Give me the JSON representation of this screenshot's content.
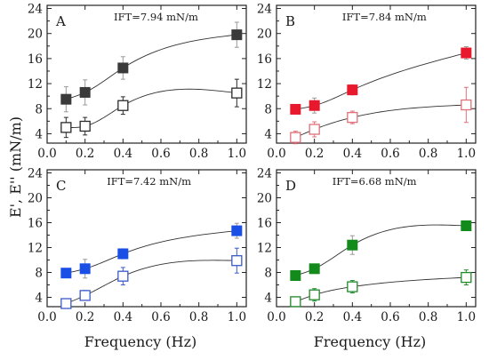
{
  "figure": {
    "ylabel": "E', E'' (mN/m)",
    "xlabel": "Frequency (Hz)"
  },
  "chart_data": [
    {
      "type": "scatter",
      "panel": "A",
      "annotation": "IFT=7.94 mN/m",
      "xlim": [
        0.0,
        1.05
      ],
      "ylim": [
        2.5,
        24.5
      ],
      "xticks": [
        "0.0",
        "0.2",
        "0.4",
        "0.6",
        "0.8",
        "1.0"
      ],
      "yticks": [
        "4",
        "8",
        "12",
        "16",
        "20",
        "24"
      ],
      "x": [
        0.1,
        0.2,
        0.4,
        1.0
      ],
      "series": [
        {
          "marker": "filled-square",
          "color": "#3a3a3a",
          "values": [
            9.5,
            10.6,
            14.5,
            19.8
          ],
          "errors": [
            2.0,
            2.0,
            1.8,
            2.0
          ]
        },
        {
          "marker": "open-square",
          "color": "#2a2a2a",
          "values": [
            5.0,
            5.2,
            8.5,
            10.5
          ],
          "errors": [
            1.6,
            1.4,
            1.4,
            2.2
          ]
        }
      ]
    },
    {
      "type": "scatter",
      "panel": "B",
      "annotation": "IFT=7.84 mN/m",
      "xlim": [
        0.0,
        1.05
      ],
      "ylim": [
        2.5,
        24.5
      ],
      "xticks": [
        "0.0",
        "0.2",
        "0.4",
        "0.6",
        "0.8",
        "1.0"
      ],
      "yticks": [
        "4",
        "8",
        "12",
        "16",
        "20",
        "24"
      ],
      "x": [
        0.1,
        0.2,
        0.4,
        1.0
      ],
      "series": [
        {
          "marker": "filled-square",
          "color": "#e8192c",
          "values": [
            7.9,
            8.5,
            11.0,
            16.9
          ],
          "errors": [
            0.6,
            1.2,
            0.8,
            1.0
          ]
        },
        {
          "marker": "open-square",
          "color": "#e0707a",
          "values": [
            3.4,
            4.7,
            6.6,
            8.6
          ],
          "errors": [
            1.0,
            1.2,
            1.0,
            2.8
          ]
        }
      ]
    },
    {
      "type": "scatter",
      "panel": "C",
      "annotation": "IFT=7.42 mN/m",
      "xlim": [
        0.0,
        1.05
      ],
      "ylim": [
        2.5,
        24.5
      ],
      "xticks": [
        "0.0",
        "0.2",
        "0.4",
        "0.6",
        "0.8",
        "1.0"
      ],
      "yticks": [
        "4",
        "8",
        "12",
        "16",
        "20",
        "24"
      ],
      "x": [
        0.1,
        0.2,
        0.4,
        1.0
      ],
      "series": [
        {
          "marker": "filled-square",
          "color": "#1a4fe6",
          "values": [
            7.9,
            8.6,
            11.0,
            14.7
          ],
          "errors": [
            0.5,
            1.5,
            0.8,
            1.2
          ]
        },
        {
          "marker": "open-square",
          "color": "#3a5ac8",
          "values": [
            3.0,
            4.3,
            7.4,
            9.9
          ],
          "errors": [
            0.5,
            0.8,
            1.4,
            2.0
          ]
        }
      ]
    },
    {
      "type": "scatter",
      "panel": "D",
      "annotation": "IFT=6.68 mN/m",
      "xlim": [
        0.0,
        1.05
      ],
      "ylim": [
        2.5,
        24.5
      ],
      "xticks": [
        "0.0",
        "0.2",
        "0.4",
        "0.6",
        "0.8",
        "1.0"
      ],
      "yticks": [
        "4",
        "8",
        "12",
        "16",
        "20",
        "24"
      ],
      "x": [
        0.1,
        0.2,
        0.4,
        1.0
      ],
      "series": [
        {
          "marker": "filled-square",
          "color": "#138a1c",
          "values": [
            7.5,
            8.6,
            12.4,
            15.5
          ],
          "errors": [
            0.5,
            0.6,
            1.5,
            0.6
          ]
        },
        {
          "marker": "open-square",
          "color": "#1e8a28",
          "values": [
            3.3,
            4.4,
            5.7,
            7.2
          ],
          "errors": [
            0.6,
            1.0,
            1.0,
            1.2
          ]
        }
      ]
    }
  ]
}
